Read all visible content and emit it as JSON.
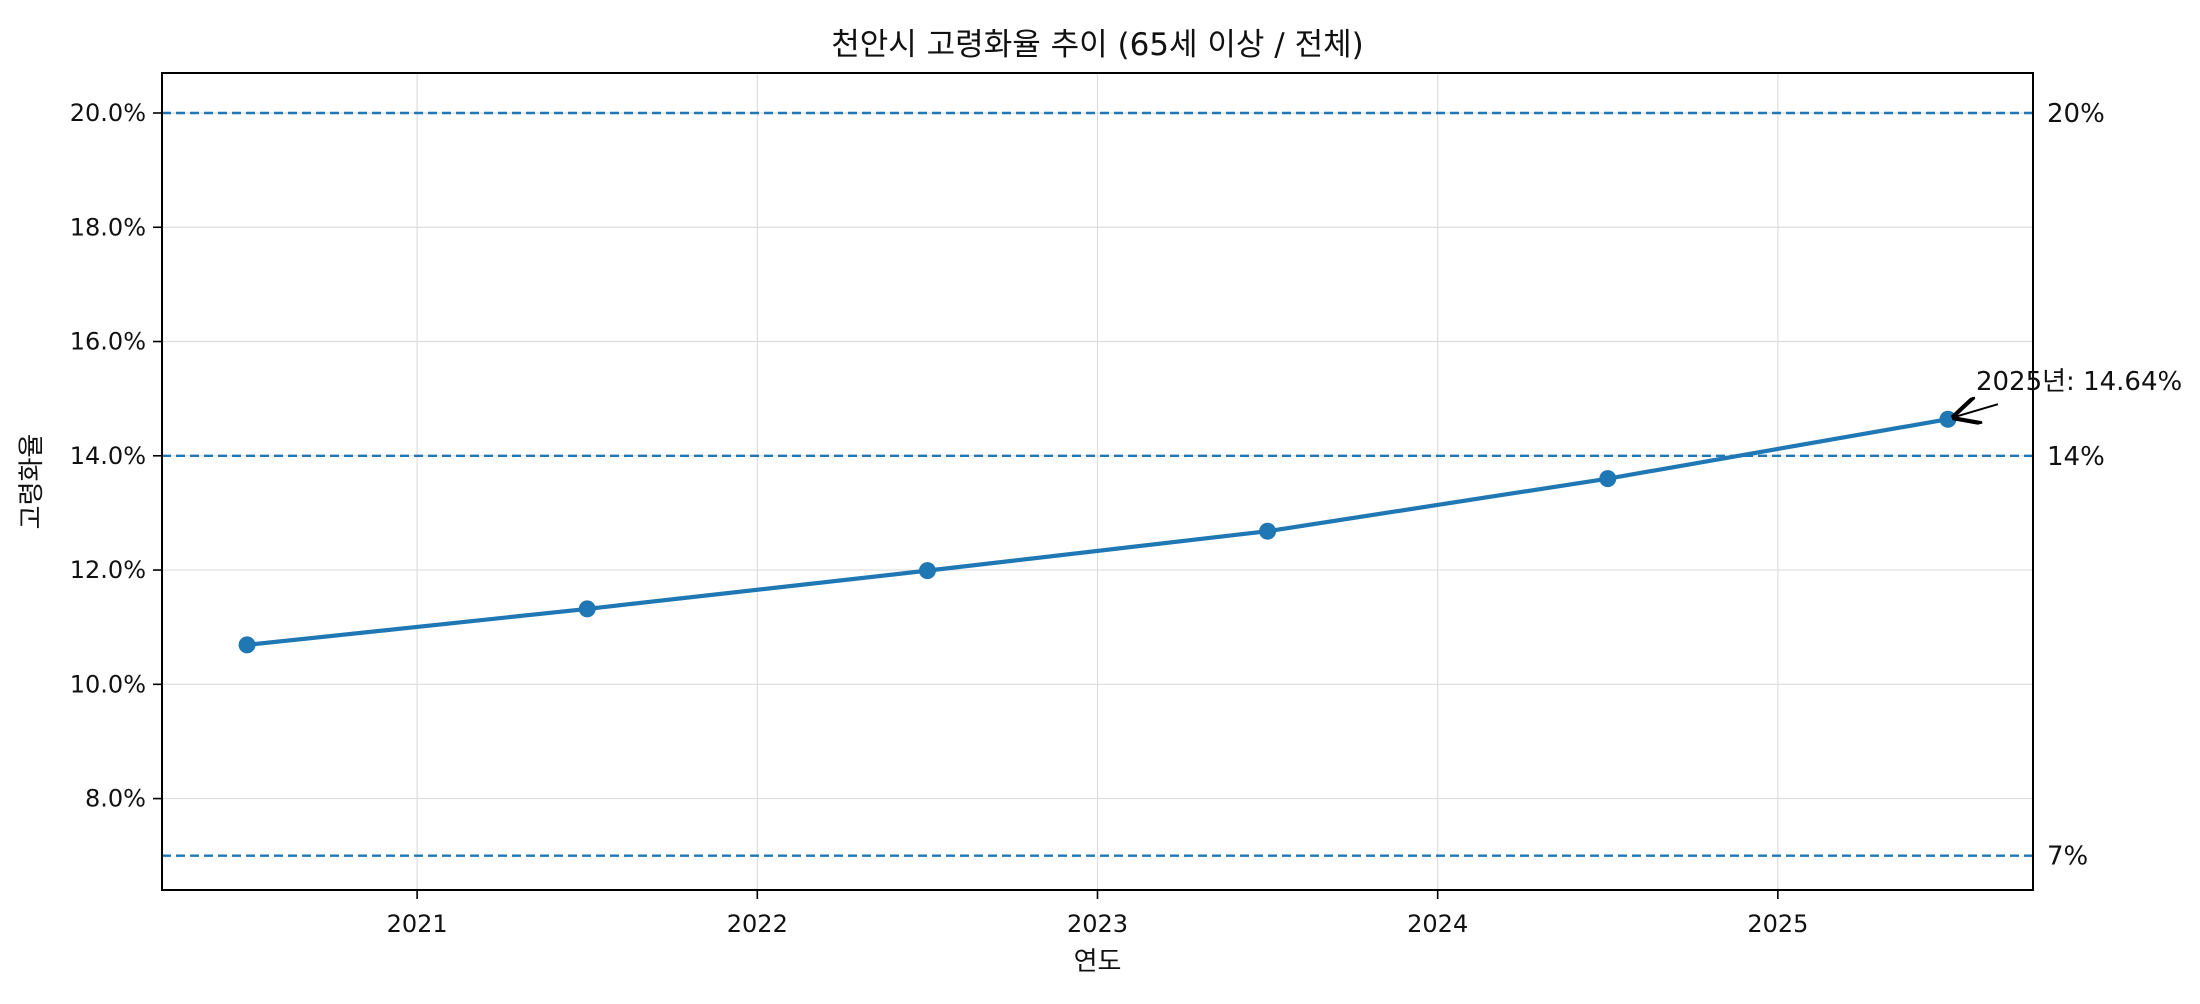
{
  "chart_data": {
    "type": "line",
    "title": "천안시 고령화율 추이 (65세 이상 / 전체)",
    "xlabel": "연도",
    "ylabel": "고령화율",
    "x": [
      2020.5,
      2021.5,
      2022.5,
      2023.5,
      2024.5,
      2025.5
    ],
    "xlim": [
      2020.25,
      2025.75
    ],
    "x_ticks": [
      2021,
      2022,
      2023,
      2024,
      2025
    ],
    "x_tick_labels": [
      "2021",
      "2022",
      "2023",
      "2024",
      "2025"
    ],
    "ylim": [
      6.4,
      20.7
    ],
    "y_ticks": [
      8,
      10,
      12,
      14,
      16,
      18,
      20
    ],
    "y_tick_labels": [
      "8.0%",
      "10.0%",
      "12.0%",
      "14.0%",
      "16.0%",
      "18.0%",
      "20.0%"
    ],
    "series": [
      {
        "values": [
          10.69,
          11.32,
          11.99,
          12.68,
          13.6,
          14.64
        ],
        "color": "#1f77b4",
        "marker": "circle"
      }
    ],
    "reference_lines": [
      {
        "value": 20,
        "label": "20%",
        "style": "dashed",
        "color": "#1f77b4"
      },
      {
        "value": 14,
        "label": "14%",
        "style": "dashed",
        "color": "#1f77b4"
      },
      {
        "value": 7,
        "label": "7%",
        "style": "dashed",
        "color": "#1f77b4"
      }
    ],
    "annotation": {
      "text": "2025년: 14.64%",
      "x": 2025.5,
      "y": 14.64,
      "arrow": true
    },
    "grid": true,
    "legend": "none"
  }
}
